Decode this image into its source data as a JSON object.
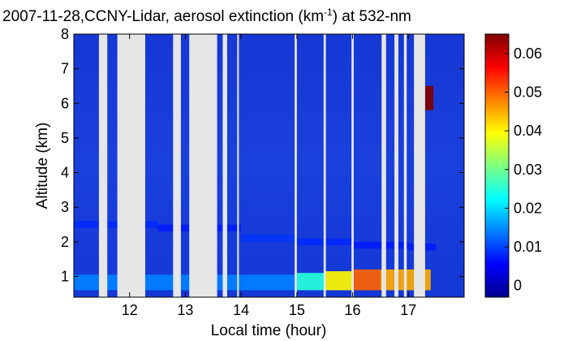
{
  "chart_data": {
    "type": "heatmap",
    "title": {
      "prefix": "2007-11-28,CCNY-Lidar, aerosol extinction (km",
      "superscript": "-1",
      "suffix": ") at 532-nm"
    },
    "xlabel": "Local time (hour)",
    "ylabel": "Altitude (km)",
    "xlim": [
      11.0,
      18.0
    ],
    "ylim": [
      0.4,
      8.0
    ],
    "x_ticks": [
      12,
      13,
      14,
      15,
      16,
      17
    ],
    "y_ticks": [
      1,
      2,
      3,
      4,
      5,
      6,
      7,
      8
    ],
    "colorbar": {
      "range": [
        -0.003,
        0.065
      ],
      "ticks": [
        0,
        0.01,
        0.02,
        0.03,
        0.04,
        0.05,
        0.06
      ],
      "tick_labels": [
        "0",
        "0.01",
        "0.02",
        "0.03",
        "0.04",
        "0.05",
        "0.06"
      ],
      "colormap": "jet"
    },
    "no_data_intervals": [
      [
        11.45,
        11.6
      ],
      [
        11.78,
        12.28
      ],
      [
        12.78,
        12.92
      ],
      [
        13.07,
        13.57
      ],
      [
        13.67,
        13.75
      ],
      [
        13.93,
        13.96
      ],
      [
        14.96,
        15.0
      ],
      [
        15.48,
        15.52
      ],
      [
        15.98,
        16.02
      ],
      [
        16.52,
        16.6
      ],
      [
        16.75,
        16.82
      ],
      [
        16.92,
        16.97
      ],
      [
        17.1,
        17.3
      ]
    ],
    "layers": [
      {
        "name": "boundary layer",
        "x": [
          11.0,
          14.0,
          15.0,
          15.5,
          16.0,
          16.5,
          17.2,
          17.4
        ],
        "base_km": 0.6,
        "top_km": [
          1.05,
          1.05,
          1.1,
          1.15,
          1.2,
          1.2,
          1.2,
          1.2
        ],
        "peak_extinction": [
          0.014,
          0.014,
          0.025,
          0.04,
          0.05,
          0.045,
          0.045,
          0.06
        ]
      },
      {
        "name": "lofted layer",
        "x": [
          11.0,
          12.5,
          14.0,
          15.0,
          16.0,
          17.0,
          17.5
        ],
        "altitude_km": [
          2.5,
          2.4,
          2.1,
          2.0,
          1.9,
          1.85,
          1.8
        ],
        "peak_extinction": [
          0.008,
          0.007,
          0.009,
          0.008,
          0.007,
          0.007,
          0.007
        ]
      },
      {
        "name": "cloud",
        "x": [
          17.3,
          17.45
        ],
        "altitude_km": [
          5.8,
          6.5
        ],
        "peak_extinction": [
          0.065,
          0.065
        ]
      }
    ]
  }
}
